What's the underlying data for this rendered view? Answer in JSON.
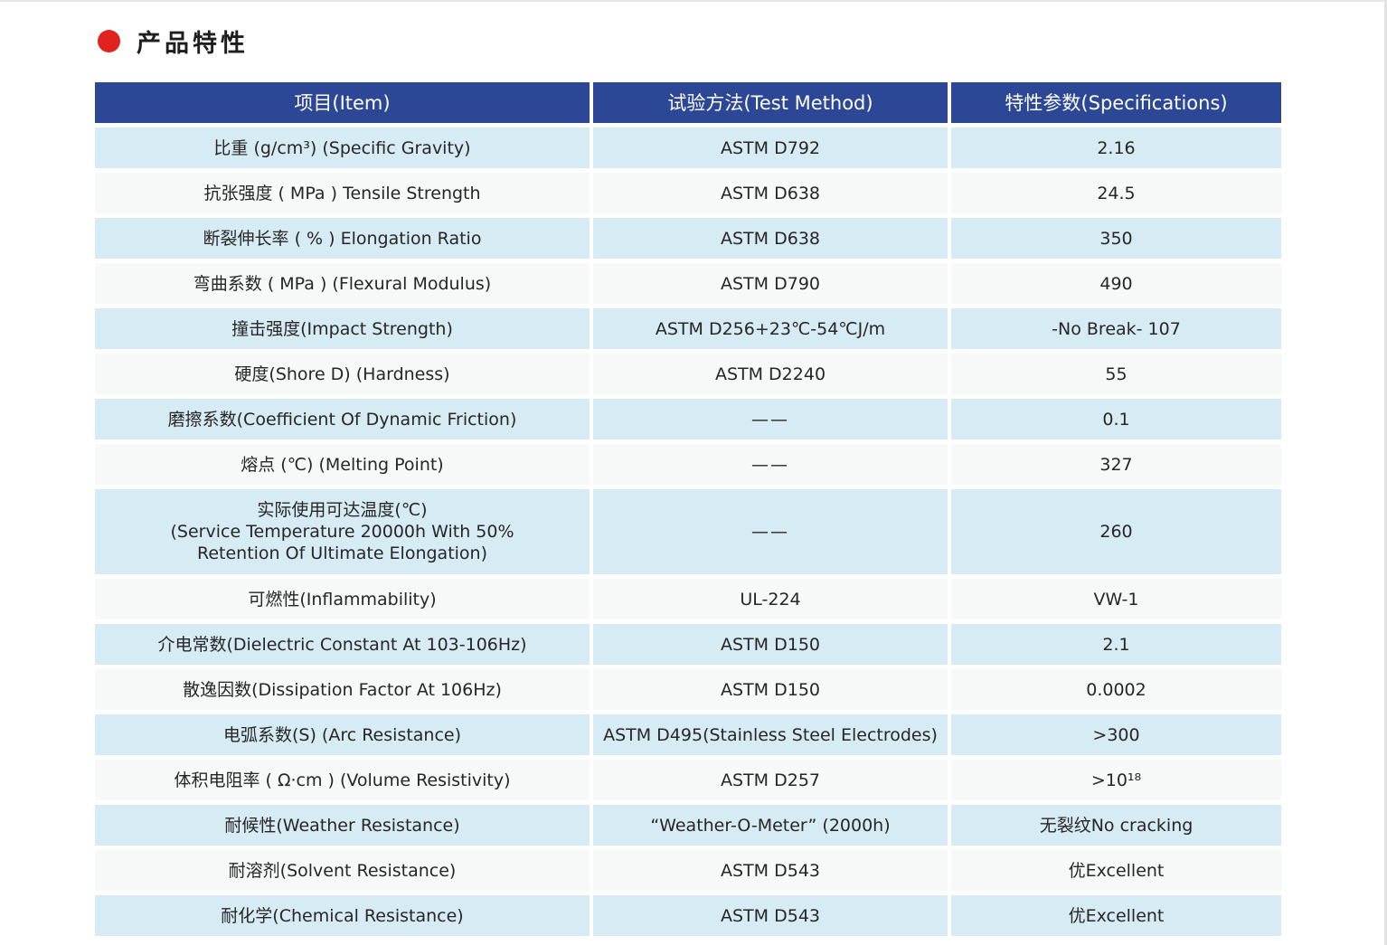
{
  "heading": {
    "title": "产品特性"
  },
  "table": {
    "headers": [
      "项目(Item)",
      "试验方法(Test Method)",
      "特性参数(Specifications)"
    ],
    "rows": [
      {
        "item": "比重 (g/cm³) (Specific Gravity)",
        "method": "ASTM D792",
        "spec": "2.16"
      },
      {
        "item": "抗张强度 ( MPa ) Tensile Strength",
        "method": "ASTM D638",
        "spec": "24.5"
      },
      {
        "item": "断裂伸长率 ( % ) Elongation Ratio",
        "method": "ASTM D638",
        "spec": "350"
      },
      {
        "item": "弯曲系数 ( MPa ) (Flexural Modulus)",
        "method": "ASTM D790",
        "spec": "490"
      },
      {
        "item": "撞击强度(Impact Strength)",
        "method": "ASTM D256+23℃-54℃J/m",
        "spec": "-No Break- 107"
      },
      {
        "item": "硬度(Shore D) (Hardness)",
        "method": "ASTM D2240",
        "spec": "55"
      },
      {
        "item": "磨擦系数(Coefficient Of Dynamic Friction)",
        "method": "——",
        "spec": "0.1"
      },
      {
        "item": "熔点 (℃) (Melting Point)",
        "method": "——",
        "spec": "327"
      },
      {
        "item": "实际使用可达温度(℃)\n(Service Temperature 20000h With 50%\nRetention Of Ultimate Elongation)",
        "method": "——",
        "spec": "260"
      },
      {
        "item": "可燃性(Inflammability)",
        "method": "UL-224",
        "spec": "VW-1"
      },
      {
        "item": "介电常数(Dielectric Constant At 103-106Hz)",
        "method": "ASTM D150",
        "spec": "2.1"
      },
      {
        "item": "散逸因数(Dissipation Factor At 106Hz)",
        "method": "ASTM D150",
        "spec": "0.0002"
      },
      {
        "item": "电弧系数(S) (Arc Resistance)",
        "method": "ASTM D495(Stainless Steel Electrodes)",
        "spec": ">300"
      },
      {
        "item": "体积电阻率 ( Ω·cm ) (Volume Resistivity)",
        "method": "ASTM D257",
        "spec": ">10¹⁸"
      },
      {
        "item": "耐候性(Weather Resistance)",
        "method": "“Weather-O-Meter”  (2000h)",
        "spec": "无裂纹No cracking"
      },
      {
        "item": "耐溶剂(Solvent Resistance)",
        "method": "ASTM D543",
        "spec": "优Excellent"
      },
      {
        "item": "耐化学(Chemical Resistance)",
        "method": "ASTM D543",
        "spec": "优Excellent"
      }
    ]
  },
  "colors": {
    "header_bg": "#2b4796",
    "row_blue": "#d6ebf4",
    "row_white": "#f7f8f8",
    "accent_dot": "#e0231e"
  }
}
